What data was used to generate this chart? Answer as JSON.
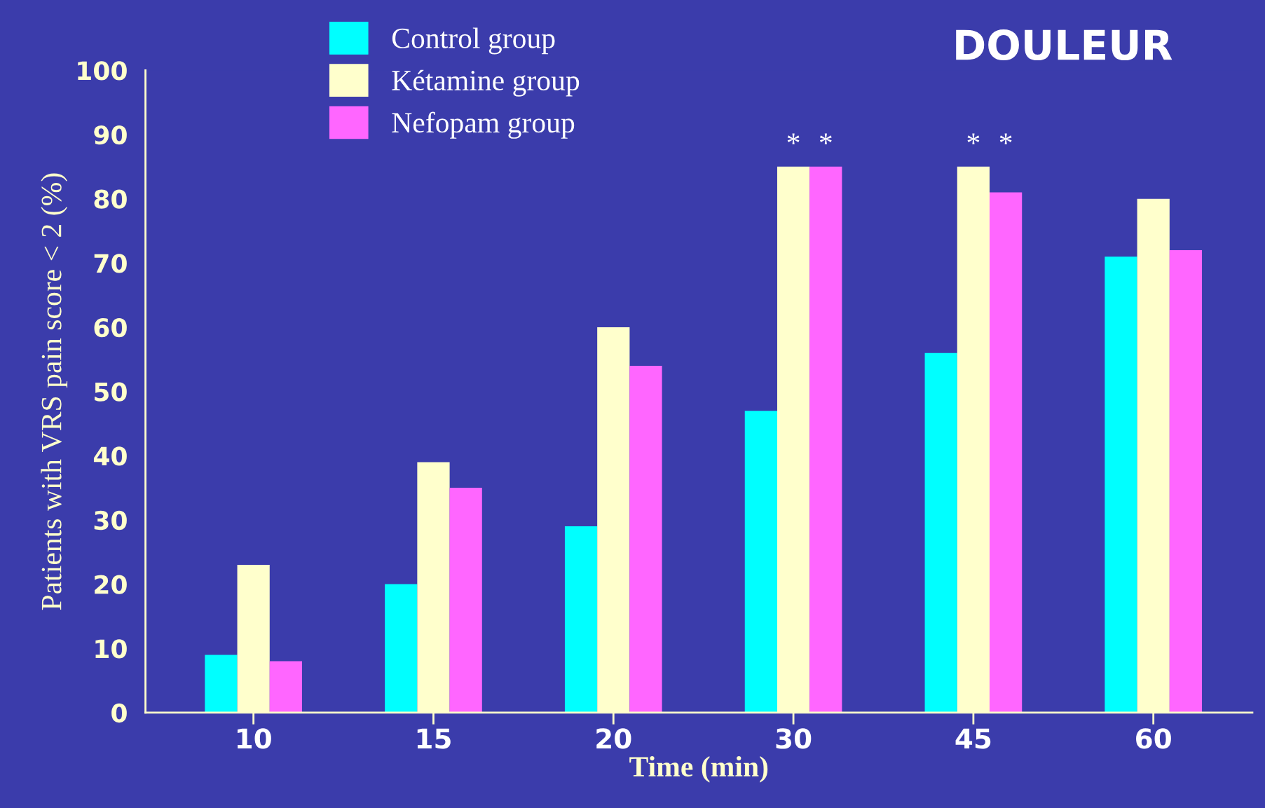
{
  "chart_data": {
    "type": "bar",
    "title": "DOULEUR",
    "xlabel": "Time (min)",
    "ylabel": "Patients with VRS pain score < 2 (%)",
    "categories": [
      "10",
      "15",
      "20",
      "30",
      "45",
      "60"
    ],
    "series": [
      {
        "name": "Control group",
        "color": "#00ffff",
        "values": [
          9,
          20,
          29,
          47,
          56,
          71
        ]
      },
      {
        "name": "Kétamine group",
        "color": "#ffffcc",
        "values": [
          23,
          39,
          60,
          85,
          85,
          80
        ]
      },
      {
        "name": "Nefopam group",
        "color": "#ff66ff",
        "values": [
          8,
          35,
          54,
          85,
          81,
          72
        ]
      }
    ],
    "ylim": [
      0,
      100
    ],
    "yticks": [
      0,
      10,
      20,
      30,
      40,
      50,
      60,
      70,
      80,
      90,
      100
    ],
    "grid": false,
    "legend": "top left",
    "annotations": [
      {
        "text": "*",
        "x": "30",
        "y": 85
      },
      {
        "text": "*",
        "x": "30",
        "y": 85
      },
      {
        "text": "*",
        "x": "45",
        "y": 85
      },
      {
        "text": "*",
        "x": "45",
        "y": 85
      }
    ]
  }
}
